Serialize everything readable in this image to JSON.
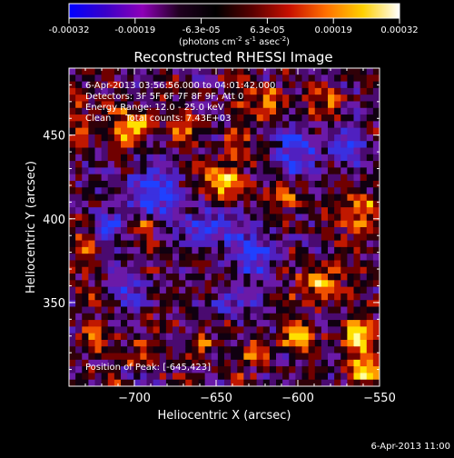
{
  "colorbar": {
    "tick_labels": [
      "-0.00032",
      "-0.00019",
      "-6.3e-05",
      "6.3e-05",
      "0.00019",
      "0.00032"
    ],
    "units_label": "(photons cm",
    "units_exp1": "-2",
    "units_mid": " s",
    "units_exp2": "-1",
    "units_end": " asec",
    "units_exp3": "-2",
    "units_close": ")",
    "range": [
      -0.00032,
      0.00032
    ],
    "colors": [
      "#0000ff",
      "#3a00c8",
      "#8e00b8",
      "#200020",
      "#000000",
      "#5a0000",
      "#c81000",
      "#ff7000",
      "#ffd000",
      "#ffffff"
    ]
  },
  "chart_data": {
    "type": "heatmap",
    "title": "Reconstructed RHESSI Image",
    "xlabel": "Heliocentric X (arcsec)",
    "ylabel": "Heliocentric Y (arcsec)",
    "xlim": [
      -740,
      -550
    ],
    "ylim": [
      300,
      490
    ],
    "x_ticks": [
      -700,
      -650,
      -600,
      -550
    ],
    "y_ticks": [
      350,
      400,
      450
    ],
    "x_tick_labels": [
      "−700",
      "−650",
      "−600",
      "−550"
    ],
    "y_tick_labels": [
      "350",
      "400",
      "450"
    ],
    "peak": {
      "x": -645,
      "y": 423
    },
    "annotations": [
      "6-Apr-2013 03:56:56.000 to 04:01:42.000",
      "Detectors: 3F 5F 6F 7F 8F 9F, Att 0",
      "Energy Range: 12.0 - 25.0 keV",
      "Clean     Total counts: 7.43E+03"
    ],
    "peak_label": "Position of Peak: [-645,423]",
    "grid": false,
    "colorbar_position": "top"
  },
  "footer": {
    "timestamp": "6-Apr-2013 11:00"
  }
}
